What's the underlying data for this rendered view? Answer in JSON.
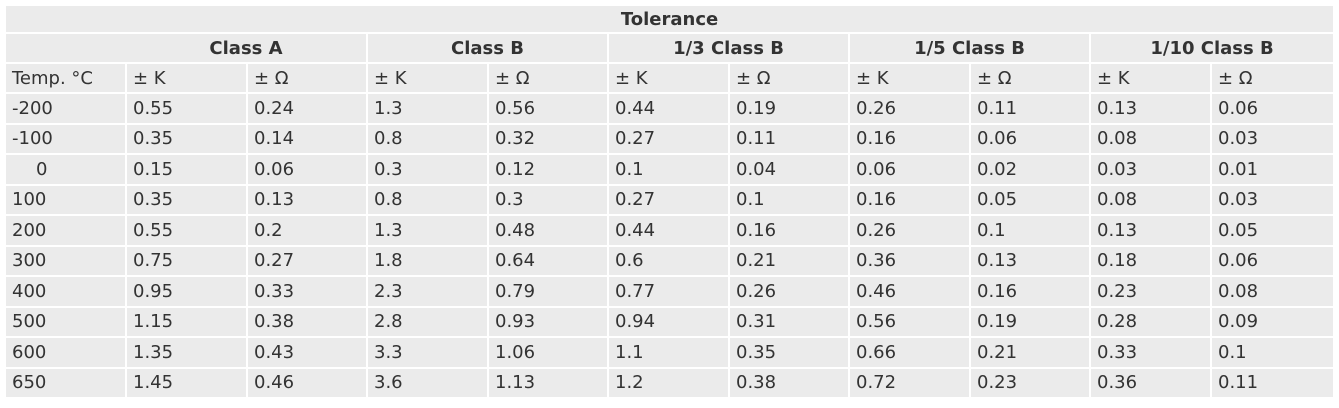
{
  "table": {
    "title": "Tolerance",
    "classes": [
      "Class A",
      "Class B",
      "1/3 Class B",
      "1/5 Class B",
      "1/10 Class B"
    ],
    "unit_headers": [
      "Temp. °C",
      "± K",
      "± Ω",
      "± K",
      "± Ω",
      "± K",
      "± Ω",
      "± K",
      "± Ω",
      "± K",
      "± Ω"
    ],
    "rows": [
      [
        "-200",
        "0.55",
        "0.24",
        "1.3",
        "0.56",
        "0.44",
        "0.19",
        "0.26",
        "0.11",
        "0.13",
        "0.06"
      ],
      [
        "-100",
        "0.35",
        "0.14",
        "0.8",
        "0.32",
        "0.27",
        "0.11",
        "0.16",
        "0.06",
        "0.08",
        "0.03"
      ],
      [
        "0",
        "0.15",
        "0.06",
        "0.3",
        "0.12",
        "0.1",
        "0.04",
        "0.06",
        "0.02",
        "0.03",
        "0.01"
      ],
      [
        "100",
        "0.35",
        "0.13",
        "0.8",
        "0.3",
        "0.27",
        "0.1",
        "0.16",
        "0.05",
        "0.08",
        "0.03"
      ],
      [
        "200",
        "0.55",
        "0.2",
        "1.3",
        "0.48",
        "0.44",
        "0.16",
        "0.26",
        "0.1",
        "0.13",
        "0.05"
      ],
      [
        "300",
        "0.75",
        "0.27",
        "1.8",
        "0.64",
        "0.6",
        "0.21",
        "0.36",
        "0.13",
        "0.18",
        "0.06"
      ],
      [
        "400",
        "0.95",
        "0.33",
        "2.3",
        "0.79",
        "0.77",
        "0.26",
        "0.46",
        "0.16",
        "0.23",
        "0.08"
      ],
      [
        "500",
        "1.15",
        "0.38",
        "2.8",
        "0.93",
        "0.94",
        "0.31",
        "0.56",
        "0.19",
        "0.28",
        "0.09"
      ],
      [
        "600",
        "1.35",
        "0.43",
        "3.3",
        "1.06",
        "1.1",
        "0.35",
        "0.66",
        "0.21",
        "0.33",
        "0.1"
      ],
      [
        "650",
        "1.45",
        "0.46",
        "3.6",
        "1.13",
        "1.2",
        "0.38",
        "0.72",
        "0.23",
        "0.36",
        "0.11"
      ]
    ]
  }
}
